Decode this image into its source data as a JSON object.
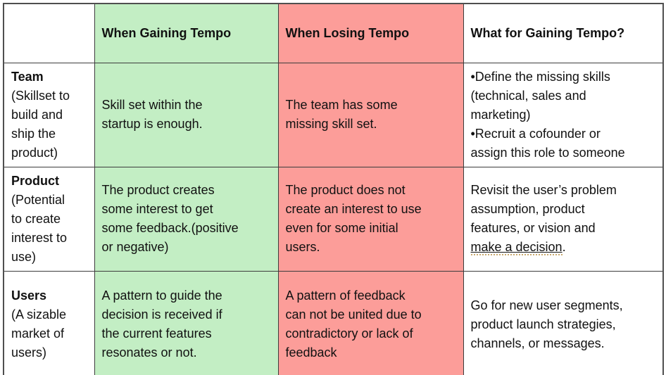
{
  "colors": {
    "gaining-bg": "#c3eec4",
    "losing-bg": "#fc9d99",
    "grammar-dot": "#c9a96e"
  },
  "table": {
    "headers": {
      "rowlabel": "",
      "gaining": "When Gaining Tempo",
      "losing": "When Losing Tempo",
      "action": "What for Gaining Tempo?"
    },
    "rows": [
      {
        "title": "Team",
        "subtitle": "(Skillset to\nbuild and\nship the\nproduct)",
        "gaining": "Skill set within the\nstartup is enough.",
        "losing": "The team has some\nmissing skill set.",
        "action": "•Define the missing skills\n(technical, sales and\nmarketing)\n•Recruit a cofounder or\nassign this role to someone"
      },
      {
        "title": "Product",
        "subtitle": "(Potential\nto create\ninterest to\nuse)",
        "gaining": "The product creates\nsome interest to get\nsome feedback.(positive\nor negative)",
        "losing": "The product does not\ncreate an interest to use\neven for some initial\nusers.",
        "action_prefix": "Revisit the user’s problem\nassumption, product\nfeatures, or vision and\n",
        "action_underlined": "make a decision",
        "action_suffix": "."
      },
      {
        "title": "Users",
        "subtitle": "(A sizable\nmarket of\nusers)",
        "gaining": "A pattern to guide the\ndecision is received if\nthe current features\nresonates or not.",
        "losing": "A pattern of feedback\ncan not be united due to\ncontradictory or lack of\nfeedback",
        "action": "Go for new user segments,\nproduct launch strategies,\nchannels, or messages."
      }
    ]
  }
}
